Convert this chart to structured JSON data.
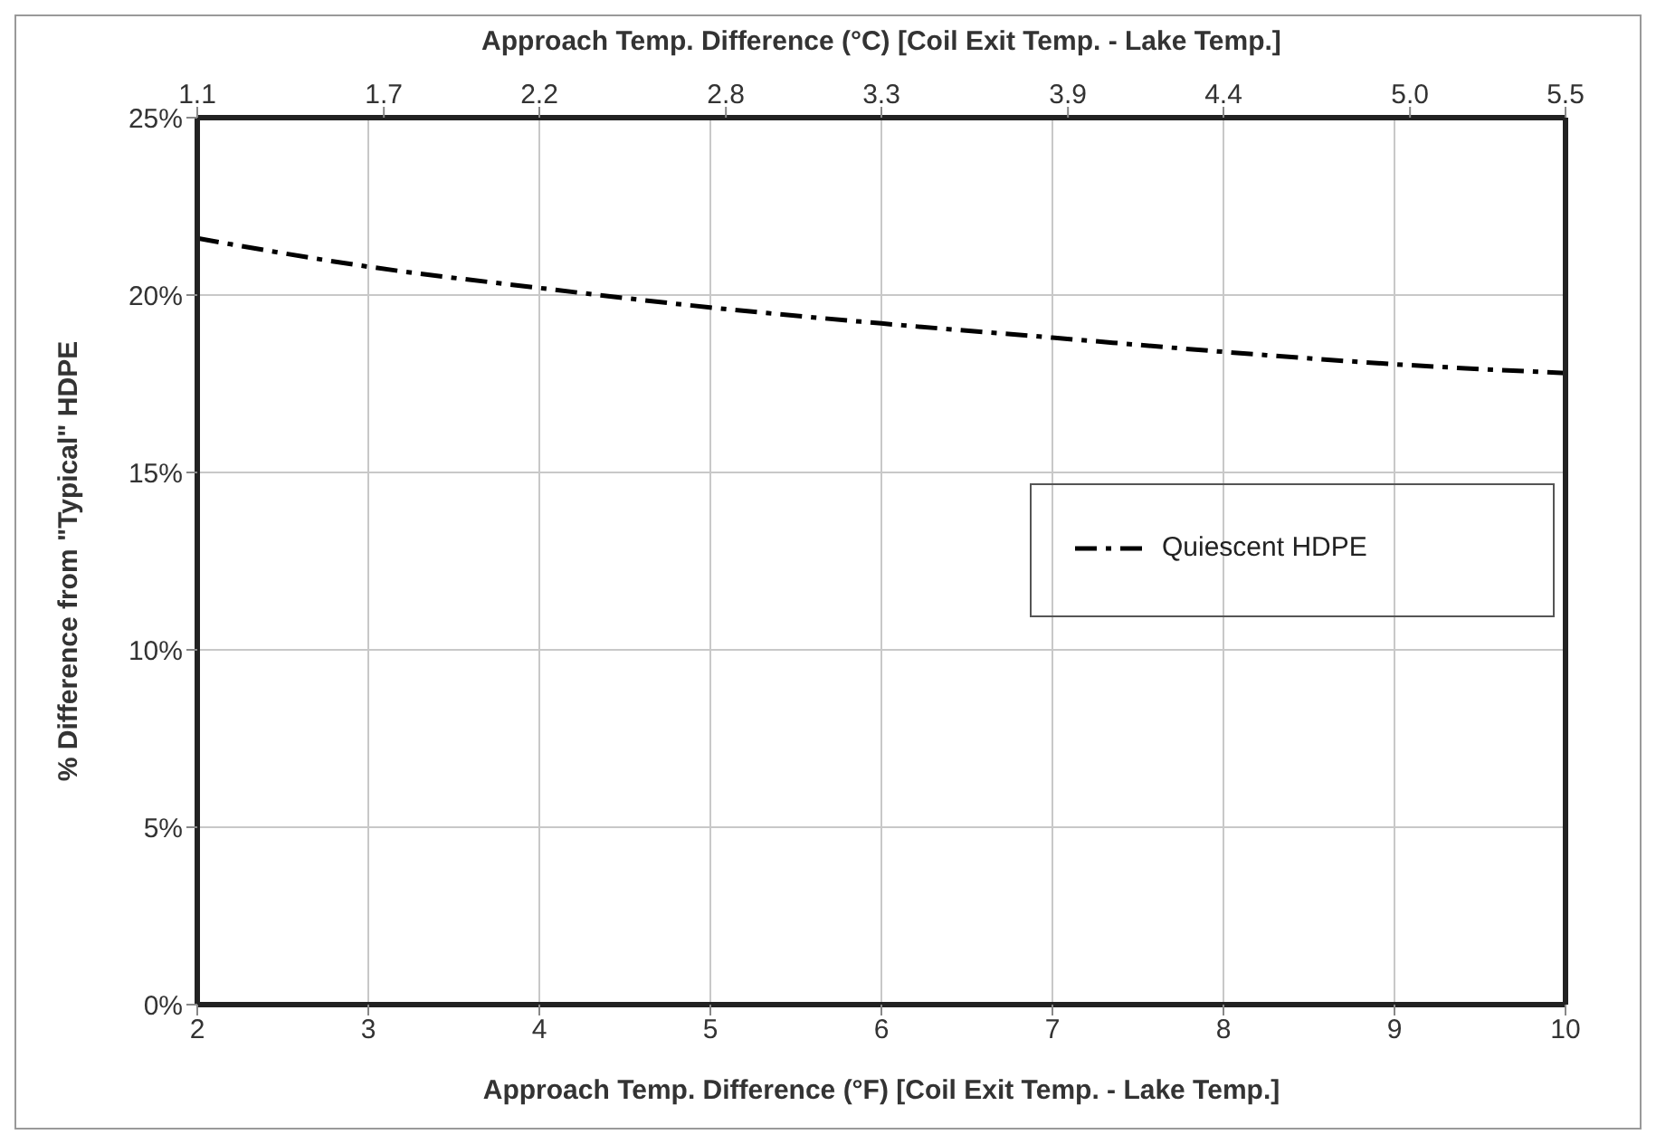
{
  "chart_data": {
    "type": "line",
    "xlabel": "Approach Temp. Difference (°F) [Coil Exit Temp. - Lake Temp.]",
    "x2label": "Approach Temp. Difference (°C) [Coil Exit Temp. - Lake Temp.]",
    "ylabel": "% Difference from \"Typical\" HDPE",
    "x": [
      2,
      3,
      4,
      5,
      6,
      7,
      8,
      9,
      10
    ],
    "series": [
      {
        "name": "Quiescent HDPE",
        "color": "#000000",
        "values": [
          21.6,
          20.8,
          20.2,
          19.65,
          19.2,
          18.8,
          18.4,
          18.05,
          17.8
        ]
      }
    ],
    "xlim": [
      2,
      10
    ],
    "xticks": [
      2,
      3,
      4,
      5,
      6,
      7,
      8,
      9,
      10
    ],
    "x2lim": [
      1.1,
      5.5
    ],
    "x2ticks": [
      1.1,
      1.7,
      2.2,
      2.8,
      3.3,
      3.9,
      4.4,
      {
        "value": 5,
        "label": "5.0"
      },
      5.5
    ],
    "ylim": [
      0,
      25
    ],
    "yticks": [
      {
        "value": 0,
        "label": "0%"
      },
      {
        "value": 5,
        "label": "5%"
      },
      {
        "value": 10,
        "label": "10%"
      },
      {
        "value": 15,
        "label": "15%"
      },
      {
        "value": 20,
        "label": "20%"
      },
      {
        "value": 25,
        "label": "25%"
      }
    ],
    "grid": true,
    "legend": "right",
    "marker": "none",
    "line_style": "dashed"
  }
}
